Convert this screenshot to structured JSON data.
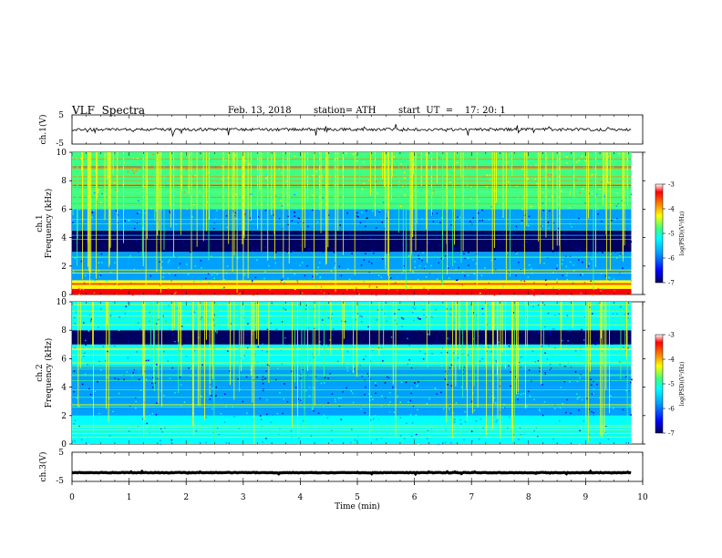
{
  "header": {
    "title": "VLF  Spectra",
    "date": "Feb. 13, 2018",
    "station": "station= ATH",
    "start_ut": "start  UT  =    17: 20: 1"
  },
  "colors": {
    "colormap": [
      "#000060",
      "#0000ff",
      "#00a0ff",
      "#00ffff",
      "#40ff80",
      "#ffff00",
      "#ff8000",
      "#ff0000",
      "#ffffff"
    ],
    "trace": "#000000"
  },
  "chart_data": [
    {
      "type": "line",
      "name": "channel-1-waveform",
      "ylabel": "ch.1(V)",
      "ylim": [
        -5,
        5
      ],
      "yticks": [
        "5",
        "-5"
      ],
      "xlim": [
        0,
        10
      ],
      "description_values": {
        "baseline_v": 0.0,
        "noise_amplitude_v": 1.0,
        "data_end_min": 9.8
      }
    },
    {
      "type": "heatmap",
      "name": "channel-1-spectrogram",
      "ylabel": "Frequency  (kHz)",
      "channel_label": "ch.1",
      "ylim": [
        0,
        10
      ],
      "yticks": [
        "0",
        "2",
        "4",
        "6",
        "8",
        "10"
      ],
      "xlim": [
        0,
        10
      ],
      "data_end_min": 9.8,
      "colorbar": {
        "label": "log(PSD)(V²/Hz)",
        "range": [
          -7,
          -3
        ],
        "ticks": [
          "-3",
          "-4",
          "-5",
          "-6",
          "-7"
        ]
      },
      "bands_khz": [
        {
          "from": 0.0,
          "to": 0.4,
          "level": -3.5
        },
        {
          "from": 0.4,
          "to": 1.0,
          "level": -4.2
        },
        {
          "from": 1.0,
          "to": 3.0,
          "level": -5.6
        },
        {
          "from": 3.0,
          "to": 4.6,
          "level": -6.8
        },
        {
          "from": 4.6,
          "to": 6.0,
          "level": -5.9
        },
        {
          "from": 6.0,
          "to": 7.2,
          "level": -5.0
        },
        {
          "from": 7.2,
          "to": 10.0,
          "level": -4.7
        }
      ]
    },
    {
      "type": "heatmap",
      "name": "channel-2-spectrogram",
      "ylabel": "Frequency  (kHz)",
      "channel_label": "ch.2",
      "ylim": [
        0,
        10
      ],
      "yticks": [
        "0",
        "2",
        "4",
        "6",
        "8",
        "10"
      ],
      "xlim": [
        0,
        10
      ],
      "data_end_min": 9.8,
      "colorbar": {
        "label": "log(PSD)(V²/Hz)",
        "range": [
          -7,
          -3
        ],
        "ticks": [
          "-3",
          "-4",
          "-5",
          "-6",
          "-7"
        ]
      },
      "bands_khz": [
        {
          "from": 0.0,
          "to": 2.0,
          "level": -5.3
        },
        {
          "from": 2.0,
          "to": 4.0,
          "level": -5.6
        },
        {
          "from": 4.0,
          "to": 5.5,
          "level": -6.0
        },
        {
          "from": 5.5,
          "to": 7.0,
          "level": -5.4
        },
        {
          "from": 7.0,
          "to": 8.0,
          "level": -6.6
        },
        {
          "from": 8.0,
          "to": 10.0,
          "level": -5.5
        }
      ]
    },
    {
      "type": "line",
      "name": "channel-3-waveform",
      "ylabel": "ch.3(V)",
      "ylim": [
        -5,
        5
      ],
      "yticks": [
        "5",
        "-5"
      ],
      "xlim": [
        0,
        10
      ],
      "xlabel": "Time  (min)",
      "xticks": [
        "0",
        "1",
        "2",
        "3",
        "4",
        "5",
        "6",
        "7",
        "8",
        "9",
        "10"
      ],
      "description_values": {
        "baseline_v": -2.0,
        "noise_amplitude_v": 0.2,
        "data_end_min": 9.8
      }
    }
  ]
}
